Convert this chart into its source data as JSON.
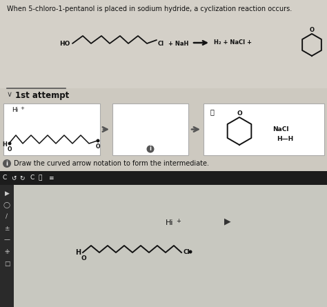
{
  "title": "When 5-chloro-1-pentanol is placed in sodium hydride, a cyclization reaction occurs.",
  "title_fontsize": 7.0,
  "bg_color": "#cdc9c0",
  "section_bg": "#cdc9c0",
  "attempt_label": "1st attempt",
  "info_text": "Draw the curved arrow notation to form the intermediate.",
  "nacl_label": "NaCl",
  "hh_label": "H—H",
  "hi_label": "Hi",
  "nah_label": "+ NaH",
  "products_label": "H₂ + NaCl +",
  "toolbar_bg": "#1c1c1c",
  "left_bar_bg": "#2a2a2a",
  "canvas_bg": "#c8c8c0"
}
